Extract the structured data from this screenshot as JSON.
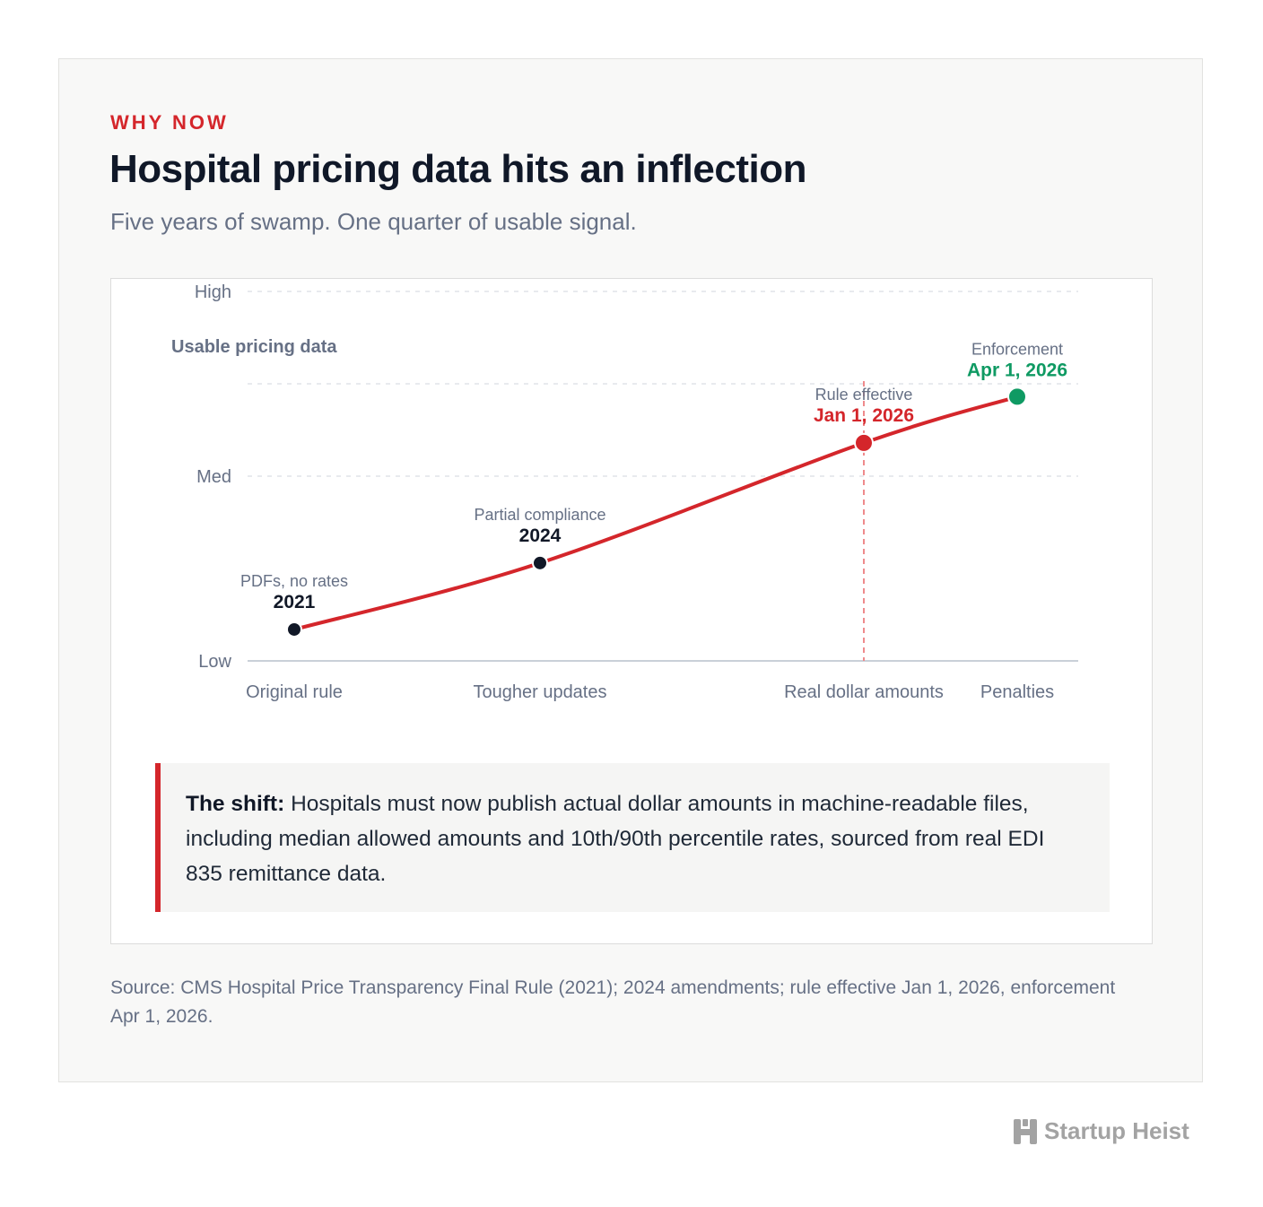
{
  "header": {
    "eyebrow": "WHY NOW",
    "title": "Hospital pricing data hits an inflection",
    "subtitle": "Five years of swamp. One quarter of usable signal."
  },
  "chart_data": {
    "type": "line",
    "ylabel": "Usable pricing data",
    "y_ticks": [
      "Low",
      "Med",
      "High"
    ],
    "x_categories": [
      "Original rule",
      "Tougher updates",
      "Real dollar amounts",
      "Penalties"
    ],
    "grid": "horizontal dashed",
    "points": [
      {
        "x": "Original rule",
        "y": 0.17,
        "label": "PDFs, no rates",
        "value_label": "2021",
        "color": "#111827"
      },
      {
        "x": "Tougher updates",
        "y": 0.53,
        "label": "Partial compliance",
        "value_label": "2024",
        "color": "#111827"
      },
      {
        "x": "Real dollar amounts",
        "y": 1.18,
        "label": "Rule effective",
        "value_label": "Jan 1, 2026",
        "color": "#d4262b",
        "vertical_marker": true
      },
      {
        "x": "Penalties",
        "y": 1.43,
        "label": "Enforcement",
        "value_label": "Apr 1, 2026",
        "color": "#0f9a63"
      }
    ],
    "line_color": "#d4262b"
  },
  "callout": {
    "lead": "The shift:",
    "text": "Hospitals must now publish actual dollar amounts in machine-readable files, including median allowed amounts and 10th/90th percentile rates, sourced from real EDI 835 remittance data."
  },
  "source": "Source: CMS Hospital Price Transparency Final Rule (2021); 2024 amendments; rule effective Jan 1, 2026, enforcement Apr 1, 2026.",
  "brand": {
    "name": "Startup Heist",
    "icon": "h-logo-icon"
  }
}
